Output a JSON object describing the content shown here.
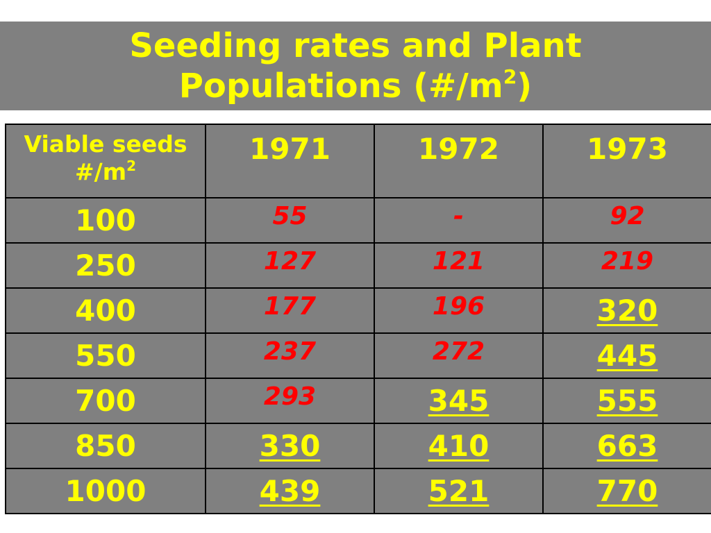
{
  "title": {
    "line1": "Seeding rates and Plant",
    "line2_main": "Populations (#/m",
    "line2_sup": "2",
    "line2_end": ")"
  },
  "table": {
    "header": {
      "label_line1": "Viable seeds",
      "label_line2_main": "#/m",
      "label_line2_sup": "2",
      "years": [
        "1971",
        "1972",
        "1973"
      ]
    },
    "rows": [
      {
        "rate": "100",
        "values": [
          {
            "text": "55",
            "style": "red"
          },
          {
            "text": "-",
            "style": "red"
          },
          {
            "text": "92",
            "style": "red"
          }
        ]
      },
      {
        "rate": "250",
        "values": [
          {
            "text": "127",
            "style": "red"
          },
          {
            "text": "121",
            "style": "red"
          },
          {
            "text": "219",
            "style": "red"
          }
        ]
      },
      {
        "rate": "400",
        "values": [
          {
            "text": "177",
            "style": "red"
          },
          {
            "text": "196",
            "style": "red"
          },
          {
            "text": "320",
            "style": "yellow"
          }
        ]
      },
      {
        "rate": "550",
        "values": [
          {
            "text": "237",
            "style": "red"
          },
          {
            "text": "272",
            "style": "red"
          },
          {
            "text": "445",
            "style": "yellow"
          }
        ]
      },
      {
        "rate": "700",
        "values": [
          {
            "text": "293",
            "style": "red"
          },
          {
            "text": "345",
            "style": "yellow"
          },
          {
            "text": "555",
            "style": "yellow"
          }
        ]
      },
      {
        "rate": "850",
        "values": [
          {
            "text": "330",
            "style": "yellow"
          },
          {
            "text": "410",
            "style": "yellow"
          },
          {
            "text": "663",
            "style": "yellow"
          }
        ]
      },
      {
        "rate": "1000",
        "values": [
          {
            "text": "439",
            "style": "yellow"
          },
          {
            "text": "521",
            "style": "yellow"
          },
          {
            "text": "770",
            "style": "yellow"
          }
        ]
      }
    ]
  },
  "colors": {
    "background": "#808080",
    "title_text": "#ffff00",
    "red_values": "#ff0000",
    "yellow_values": "#ffff00"
  }
}
